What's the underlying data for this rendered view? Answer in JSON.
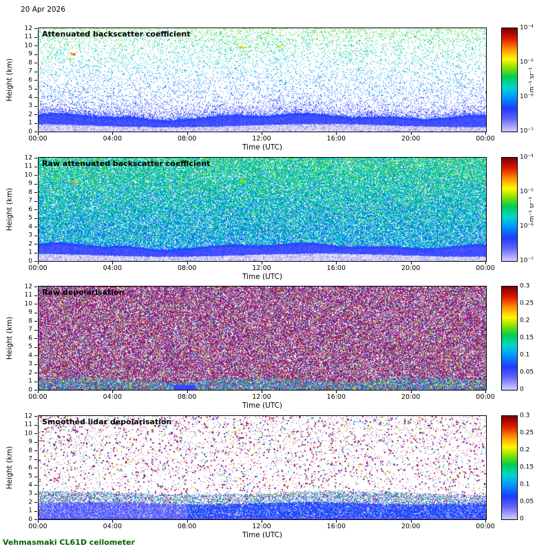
{
  "figure": {
    "date_label": "20 Apr 2026",
    "footer_label": "Vehmasmaki CL61D ceilometer",
    "footer_color": "#006400",
    "background": "#ffffff",
    "axis_color": "#000000"
  },
  "axes": {
    "x_label": "Time (UTC)",
    "y_label": "Height (km)",
    "x_ticks": [
      "00:00",
      "04:00",
      "08:00",
      "12:00",
      "16:00",
      "20:00",
      "00:00"
    ],
    "x_range_hours": [
      0,
      24
    ],
    "y_ticks": [
      "0",
      "1",
      "2",
      "3",
      "4",
      "5",
      "6",
      "7",
      "8",
      "9",
      "10",
      "11",
      "12"
    ],
    "y_range_km": [
      0,
      12
    ]
  },
  "panels": [
    {
      "id": "attenuated-backscatter",
      "title": "Attenuated backscatter coefficient",
      "style": "sparse_backscatter",
      "colorbar": {
        "scale": "log",
        "ticks": [
          "10⁻⁴",
          "10⁻⁵",
          "10⁻⁶",
          "10⁻⁷"
        ],
        "unit": "m⁻¹ sr⁻¹"
      }
    },
    {
      "id": "raw-backscatter",
      "title": "Raw attenuated backscatter coefficient",
      "style": "dense_backscatter",
      "colorbar": {
        "scale": "log",
        "ticks": [
          "10⁻⁴",
          "10⁻⁵",
          "10⁻⁶",
          "10⁻⁷"
        ],
        "unit": "m⁻¹ sr⁻¹"
      }
    },
    {
      "id": "raw-depolarisation",
      "title": "Raw depolarisation",
      "style": "dense_depol",
      "colorbar": {
        "scale": "linear",
        "ticks": [
          "0.3",
          "0.25",
          "0.2",
          "0.15",
          "0.1",
          "0.05",
          "0"
        ],
        "unit": ""
      }
    },
    {
      "id": "smoothed-depolarisation",
      "title": "Smoothed lidar depolarisation",
      "style": "sparse_depol",
      "colorbar": {
        "scale": "linear",
        "ticks": [
          "0.3",
          "0.25",
          "0.2",
          "0.15",
          "0.1",
          "0.05",
          "0"
        ],
        "unit": ""
      }
    }
  ],
  "chart_data": {
    "type": "heatmap",
    "n_panels": 4,
    "date": "20 Apr 2026",
    "instrument": "Vehmasmaki CL61D ceilometer",
    "x_axis": {
      "label": "Time (UTC)",
      "range_hours": [
        0,
        24
      ],
      "tick_labels": [
        "00:00",
        "04:00",
        "08:00",
        "12:00",
        "16:00",
        "20:00",
        "00:00"
      ]
    },
    "y_axis": {
      "label": "Height (km)",
      "range_km": [
        0,
        12
      ],
      "tick_step_km": 1
    },
    "grid": false,
    "legend_position": "right colorbars",
    "colormap": {
      "description": "jet-like: light lavender-blue at minimum through blue, cyan, green, yellow, orange to dark red at maximum",
      "stops": [
        [
          0,
          "#cdcdff"
        ],
        [
          0.12,
          "#6464ff"
        ],
        [
          0.22,
          "#1e3cff"
        ],
        [
          0.33,
          "#0096ff"
        ],
        [
          0.43,
          "#00d7cd"
        ],
        [
          0.53,
          "#00cd50"
        ],
        [
          0.62,
          "#8ce100"
        ],
        [
          0.7,
          "#fffa00"
        ],
        [
          0.8,
          "#ff9100"
        ],
        [
          0.9,
          "#e11900"
        ],
        [
          1,
          "#7a0000"
        ]
      ]
    },
    "depol_noise_color": "#8c0f78",
    "panels": [
      {
        "title": "Attenuated backscatter coefficient",
        "variable": "attenuated backscatter coefficient",
        "units": "m⁻¹ sr⁻¹",
        "scale": "log10",
        "color_range": [
          1e-07,
          0.0001
        ],
        "colorbar_ticks": [
          0.0001,
          1e-05,
          1e-06,
          1e-07
        ],
        "features": [
          "continuous strong-backscatter boundary-layer aerosol below ~2 km for the full 24 h",
          "light grey near-surface band below ~0.8 km",
          "dense blue speckle between 2 and 3 km",
          "sparse blue-green noise aloft with apparent value increasing with height",
          "orange-red high-backscatter patch near 01:50 at 9 km",
          "yellow-green patches near 10:50 and 12:50 at 9.5-10 km",
          "boundary layer top dips/thins around 05:00-07:30"
        ]
      },
      {
        "title": "Raw attenuated backscatter coefficient",
        "variable": "raw attenuated backscatter coefficient",
        "units": "m⁻¹ sr⁻¹",
        "scale": "log10",
        "color_range": [
          1e-07,
          0.0001
        ],
        "colorbar_ticks": [
          0.0001,
          1e-05,
          1e-06,
          1e-07
        ],
        "features": [
          "dense blue-green speckle (unfiltered noise) covering the whole profile",
          "same boundary-layer structure below ~2 km with light near-surface band",
          "bright green patch near 11:00 at 9.3 km",
          "orange patch near 01:50 at 9.1 km"
        ]
      },
      {
        "title": "Raw depolarisation",
        "variable": "depolarisation ratio",
        "units": "",
        "scale": "linear",
        "color_range": [
          0,
          0.3
        ],
        "colorbar_ticks": [
          0.3,
          0.25,
          0.2,
          0.15,
          0.1,
          0.05,
          0
        ],
        "features": [
          "noise-dominated dark magenta speckle above ~1.3 km (depolarisation saturated in noise)",
          "scattered full-spectrum coloured pixels mixed through the noise",
          "low-depolarisation blue-cyan-green band below ~1.2 km",
          "solid blue low-depolarisation patch 07:15-08:20 below 0.6 km"
        ]
      },
      {
        "title": "Smoothed lidar depolarisation",
        "variable": "smoothed depolarisation ratio",
        "units": "",
        "scale": "linear",
        "color_range": [
          0,
          0.3
        ],
        "colorbar_ticks": [
          0.3,
          0.25,
          0.2,
          0.15,
          0.1,
          0.05,
          0
        ],
        "features": [
          "mostly clear (white) above 3 km with sparse dark magenta noise pixels",
          "dark purple patches 01:00-02:30 at 9-10 km and near 10:50 at 9.5 km",
          "mixed-colour speckle band between ~2 and 3 km",
          "low-depolarisation blue layer below ~2 km, more saturated after 08:00",
          "thin continuous near-surface layer at 0-0.2 km"
        ]
      }
    ]
  }
}
